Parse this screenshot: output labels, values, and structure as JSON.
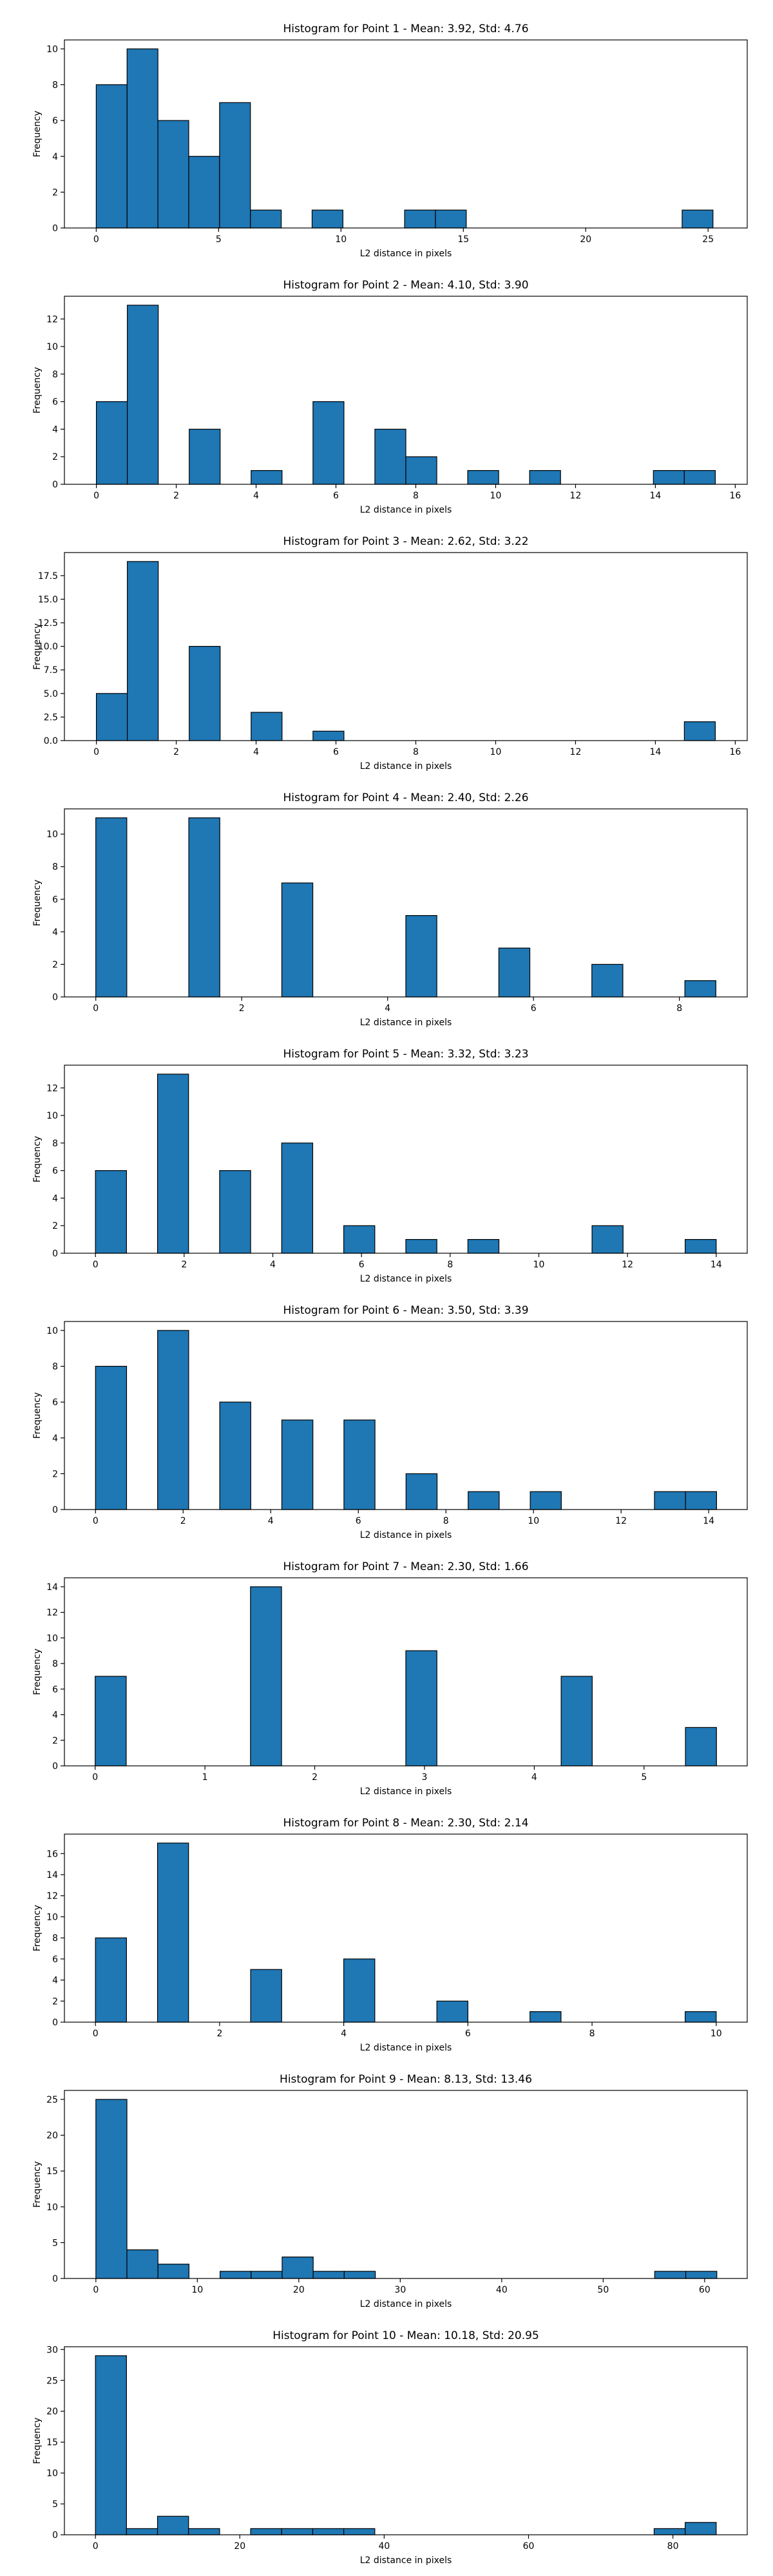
{
  "chart_data": [
    {
      "type": "bar",
      "title": "Histogram for Point 1 - Mean: 3.92, Std: 4.76",
      "xlabel": "L2 distance in pixels",
      "ylabel": "Frequency",
      "xlim": [
        -1.3,
        26.6
      ],
      "ylim": [
        0,
        10.5
      ],
      "xticks": [
        0,
        5,
        10,
        15,
        20,
        25
      ],
      "yticks": [
        0,
        2,
        4,
        6,
        8,
        10
      ],
      "bin_edges": [
        0,
        1.26,
        2.52,
        3.78,
        5.04,
        6.3,
        7.56,
        8.82,
        10.08,
        11.34,
        12.6,
        13.86,
        15.12,
        16.38,
        17.64,
        18.9,
        20.16,
        21.42,
        22.68,
        23.94,
        25.2
      ],
      "counts": [
        8,
        10,
        6,
        4,
        7,
        1,
        0,
        1,
        0,
        0,
        1,
        1,
        0,
        0,
        0,
        0,
        0,
        0,
        0,
        1
      ],
      "color": "#1f77b4",
      "grid": false
    },
    {
      "type": "bar",
      "title": "Histogram for Point 2 - Mean: 4.10, Std: 3.90",
      "xlabel": "L2 distance in pixels",
      "ylabel": "Frequency",
      "xlim": [
        -0.8,
        16.3
      ],
      "ylim": [
        0,
        13.65
      ],
      "xticks": [
        0,
        2,
        4,
        6,
        8,
        10,
        12,
        14,
        16
      ],
      "yticks": [
        0,
        2,
        4,
        6,
        8,
        10,
        12
      ],
      "bin_edges": [
        0,
        0.775,
        1.55,
        2.325,
        3.1,
        3.875,
        4.65,
        5.425,
        6.2,
        6.975,
        7.75,
        8.525,
        9.3,
        10.075,
        10.85,
        11.625,
        12.4,
        13.175,
        13.95,
        14.725,
        15.5
      ],
      "counts": [
        6,
        13,
        0,
        4,
        0,
        1,
        0,
        6,
        0,
        4,
        2,
        0,
        1,
        0,
        1,
        0,
        0,
        0,
        1,
        1
      ],
      "color": "#1f77b4",
      "grid": false
    },
    {
      "type": "bar",
      "title": "Histogram for Point 3 - Mean: 2.62, Std: 3.22",
      "xlabel": "L2 distance in pixels",
      "ylabel": "Frequency",
      "xlim": [
        -0.8,
        16.3
      ],
      "ylim": [
        0,
        19.95
      ],
      "xticks": [
        0,
        2,
        4,
        6,
        8,
        10,
        12,
        14,
        16
      ],
      "yticks": [
        0.0,
        2.5,
        5.0,
        7.5,
        10.0,
        12.5,
        15.0,
        17.5
      ],
      "tick_label_format": "1dp",
      "bin_edges": [
        0,
        0.775,
        1.55,
        2.325,
        3.1,
        3.875,
        4.65,
        5.425,
        6.2,
        6.975,
        7.75,
        8.525,
        9.3,
        10.075,
        10.85,
        11.625,
        12.4,
        13.175,
        13.95,
        14.725,
        15.5
      ],
      "counts": [
        5,
        19,
        0,
        10,
        0,
        3,
        0,
        1,
        0,
        0,
        0,
        0,
        0,
        0,
        0,
        0,
        0,
        0,
        0,
        2
      ],
      "color": "#1f77b4",
      "grid": false
    },
    {
      "type": "bar",
      "title": "Histogram for Point 4 - Mean: 2.40, Std: 2.26",
      "xlabel": "L2 distance in pixels",
      "ylabel": "Frequency",
      "xlim": [
        -0.43,
        8.93
      ],
      "ylim": [
        0,
        11.55
      ],
      "xticks": [
        0,
        2,
        4,
        6,
        8
      ],
      "yticks": [
        0,
        2,
        4,
        6,
        8,
        10
      ],
      "bin_edges": [
        0,
        0.425,
        0.85,
        1.275,
        1.7,
        2.125,
        2.55,
        2.975,
        3.4,
        3.825,
        4.25,
        4.675,
        5.1,
        5.525,
        5.95,
        6.375,
        6.8,
        7.225,
        7.65,
        8.075,
        8.5
      ],
      "counts": [
        11,
        0,
        0,
        11,
        0,
        0,
        7,
        0,
        0,
        0,
        5,
        0,
        0,
        3,
        0,
        0,
        2,
        0,
        0,
        1
      ],
      "color": "#1f77b4",
      "grid": false
    },
    {
      "type": "bar",
      "title": "Histogram for Point 5 - Mean: 3.32, Std: 3.23",
      "xlabel": "L2 distance in pixels",
      "ylabel": "Frequency",
      "xlim": [
        -0.7,
        14.7
      ],
      "ylim": [
        0,
        13.65
      ],
      "xticks": [
        0,
        2,
        4,
        6,
        8,
        10,
        12,
        14
      ],
      "yticks": [
        0,
        2,
        4,
        6,
        8,
        10,
        12
      ],
      "bin_edges": [
        0,
        0.7,
        1.4,
        2.1,
        2.8,
        3.5,
        4.2,
        4.9,
        5.6,
        6.3,
        7.0,
        7.7,
        8.4,
        9.1,
        9.8,
        10.5,
        11.2,
        11.9,
        12.6,
        13.3,
        14.0
      ],
      "counts": [
        6,
        0,
        13,
        0,
        6,
        0,
        8,
        0,
        2,
        0,
        1,
        0,
        1,
        0,
        0,
        0,
        2,
        0,
        0,
        1
      ],
      "color": "#1f77b4",
      "grid": false
    },
    {
      "type": "bar",
      "title": "Histogram for Point 6 - Mean: 3.50, Std: 3.39",
      "xlabel": "L2 distance in pixels",
      "ylabel": "Frequency",
      "xlim": [
        -0.71,
        14.88
      ],
      "ylim": [
        0,
        10.5
      ],
      "xticks": [
        0,
        2,
        4,
        6,
        8,
        10,
        12,
        14
      ],
      "yticks": [
        0,
        2,
        4,
        6,
        8,
        10
      ],
      "bin_edges": [
        0,
        0.709,
        1.418,
        2.127,
        2.836,
        3.545,
        4.254,
        4.963,
        5.672,
        6.381,
        7.09,
        7.799,
        8.508,
        9.217,
        9.926,
        10.635,
        11.344,
        12.053,
        12.762,
        13.471,
        14.18
      ],
      "counts": [
        8,
        0,
        10,
        0,
        6,
        0,
        5,
        0,
        5,
        0,
        2,
        0,
        1,
        0,
        1,
        0,
        0,
        0,
        1,
        1
      ],
      "color": "#1f77b4",
      "grid": false
    },
    {
      "type": "bar",
      "title": "Histogram for Point 7 - Mean: 2.30, Std: 1.66",
      "xlabel": "L2 distance in pixels",
      "ylabel": "Frequency",
      "xlim": [
        -0.28,
        5.94
      ],
      "ylim": [
        0,
        14.7
      ],
      "xticks": [
        0,
        1,
        2,
        3,
        4,
        5
      ],
      "yticks": [
        0,
        2,
        4,
        6,
        8,
        10,
        12,
        14
      ],
      "bin_edges": [
        0,
        0.283,
        0.566,
        0.849,
        1.132,
        1.415,
        1.698,
        1.981,
        2.264,
        2.547,
        2.83,
        3.113,
        3.396,
        3.679,
        3.962,
        4.245,
        4.528,
        4.811,
        5.094,
        5.377,
        5.66
      ],
      "counts": [
        7,
        0,
        0,
        0,
        0,
        14,
        0,
        0,
        0,
        0,
        9,
        0,
        0,
        0,
        0,
        7,
        0,
        0,
        0,
        3
      ],
      "color": "#1f77b4",
      "grid": false
    },
    {
      "type": "bar",
      "title": "Histogram for Point 8 - Mean: 2.30, Std: 2.14",
      "xlabel": "L2 distance in pixels",
      "ylabel": "Frequency",
      "xlim": [
        -0.5,
        10.5
      ],
      "ylim": [
        0,
        17.85
      ],
      "xticks": [
        0,
        2,
        4,
        6,
        8,
        10
      ],
      "yticks": [
        0,
        2,
        4,
        6,
        8,
        10,
        12,
        14,
        16
      ],
      "bin_edges": [
        0,
        0.5,
        1.0,
        1.5,
        2.0,
        2.5,
        3.0,
        3.5,
        4.0,
        4.5,
        5.0,
        5.5,
        6.0,
        6.5,
        7.0,
        7.5,
        8.0,
        8.5,
        9.0,
        9.5,
        10.0
      ],
      "counts": [
        8,
        0,
        17,
        0,
        0,
        5,
        0,
        0,
        6,
        0,
        0,
        2,
        0,
        0,
        1,
        0,
        0,
        0,
        0,
        1
      ],
      "color": "#1f77b4",
      "grid": false
    },
    {
      "type": "bar",
      "title": "Histogram for Point 9 - Mean: 8.13, Std: 13.46",
      "xlabel": "L2 distance in pixels",
      "ylabel": "Frequency",
      "xlim": [
        -3.1,
        64.2
      ],
      "ylim": [
        0,
        26.25
      ],
      "xticks": [
        0,
        10,
        20,
        30,
        40,
        50,
        60
      ],
      "yticks": [
        0,
        5,
        10,
        15,
        20,
        25
      ],
      "bin_edges": [
        0,
        3.06,
        6.12,
        9.18,
        12.24,
        15.3,
        18.36,
        21.42,
        24.48,
        27.54,
        30.6,
        33.66,
        36.72,
        39.78,
        42.84,
        45.9,
        48.96,
        52.02,
        55.08,
        58.14,
        61.2
      ],
      "counts": [
        25,
        4,
        2,
        0,
        1,
        1,
        3,
        1,
        1,
        0,
        0,
        0,
        0,
        0,
        0,
        0,
        0,
        0,
        1,
        1
      ],
      "color": "#1f77b4",
      "grid": false
    },
    {
      "type": "bar",
      "title": "Histogram for Point 10 - Mean: 10.18, Std: 20.95",
      "xlabel": "L2 distance in pixels",
      "ylabel": "Frequency",
      "xlim": [
        -4.3,
        90.3
      ],
      "ylim": [
        0,
        30.45
      ],
      "xticks": [
        0,
        20,
        40,
        60,
        80
      ],
      "yticks": [
        0,
        5,
        10,
        15,
        20,
        25,
        30
      ],
      "bin_edges": [
        0,
        4.3,
        8.6,
        12.9,
        17.2,
        21.5,
        25.8,
        30.1,
        34.4,
        38.7,
        43.0,
        47.3,
        51.6,
        55.9,
        60.2,
        64.5,
        68.8,
        73.1,
        77.4,
        81.7,
        86.0
      ],
      "counts": [
        29,
        1,
        3,
        1,
        0,
        1,
        1,
        1,
        1,
        0,
        0,
        0,
        0,
        0,
        0,
        0,
        0,
        0,
        1,
        2
      ],
      "color": "#1f77b4",
      "grid": false
    }
  ]
}
